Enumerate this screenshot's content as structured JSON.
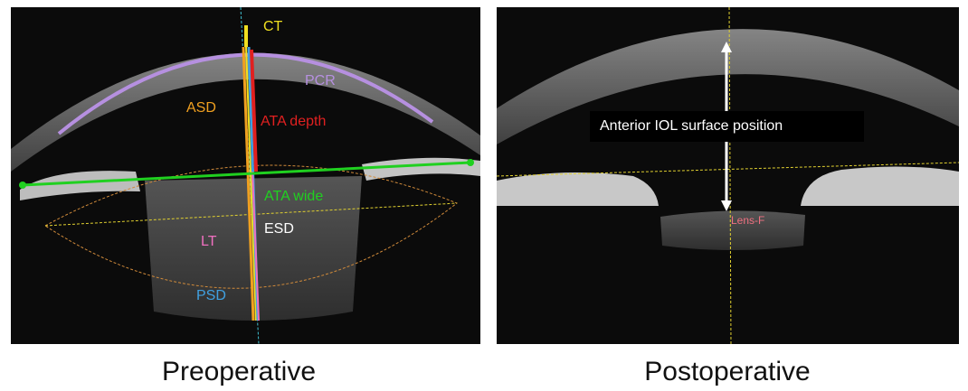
{
  "preoperative": {
    "caption": "Preoperative",
    "labels": {
      "ct": "CT",
      "pcr": "PCR",
      "asd": "ASD",
      "ata_depth": "ATA depth",
      "ata_wide": "ATA wide",
      "esd": "ESD",
      "lt": "LT",
      "psd": "PSD"
    }
  },
  "postoperative": {
    "caption": "Postoperative",
    "annotation": "Anterior IOL surface position",
    "lens_label": "Lens-F"
  }
}
